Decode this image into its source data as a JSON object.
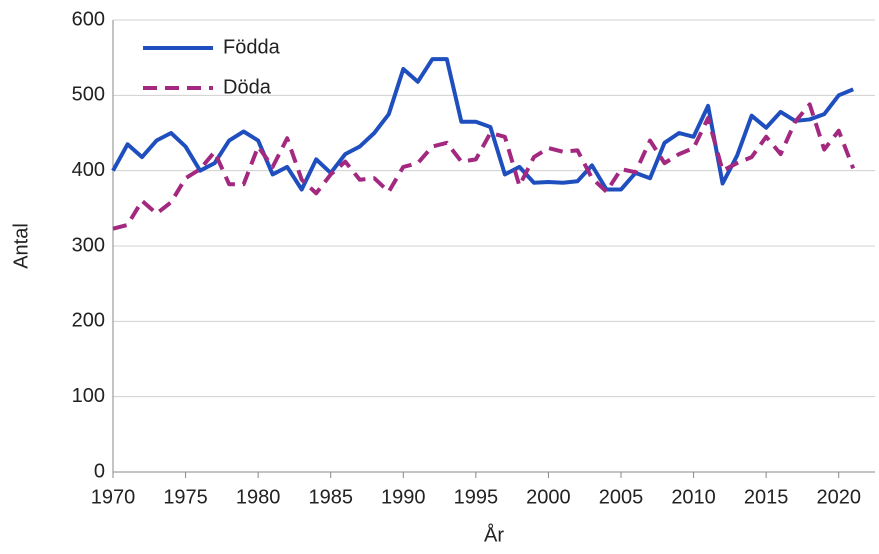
{
  "chart_data": {
    "type": "line",
    "x": [
      1970,
      1971,
      1972,
      1973,
      1974,
      1975,
      1976,
      1977,
      1978,
      1979,
      1980,
      1981,
      1982,
      1983,
      1984,
      1985,
      1986,
      1987,
      1988,
      1989,
      1990,
      1991,
      1992,
      1993,
      1994,
      1995,
      1996,
      1997,
      1998,
      1999,
      2000,
      2001,
      2002,
      2003,
      2004,
      2005,
      2006,
      2007,
      2008,
      2009,
      2010,
      2011,
      2012,
      2013,
      2014,
      2015,
      2016,
      2017,
      2018,
      2019,
      2020,
      2021
    ],
    "series": [
      {
        "name": "Födda",
        "color": "#1f4fbf",
        "dash": false,
        "values": [
          400,
          435,
          418,
          440,
          450,
          432,
          400,
          410,
          440,
          452,
          440,
          395,
          405,
          375,
          415,
          397,
          422,
          432,
          450,
          475,
          535,
          518,
          548,
          548,
          465,
          465,
          458,
          395,
          405,
          384,
          385,
          384,
          386,
          407,
          375,
          375,
          397,
          390,
          437,
          450,
          445,
          486,
          383,
          420,
          473,
          457,
          478,
          466,
          468,
          475,
          500,
          508
        ]
      },
      {
        "name": "Döda",
        "color": "#a3287f",
        "dash": true,
        "values": [
          323,
          328,
          360,
          343,
          358,
          390,
          402,
          425,
          382,
          382,
          432,
          405,
          443,
          388,
          370,
          395,
          412,
          388,
          390,
          372,
          405,
          410,
          432,
          437,
          412,
          415,
          450,
          445,
          380,
          418,
          430,
          425,
          427,
          390,
          372,
          402,
          398,
          440,
          410,
          422,
          430,
          470,
          400,
          410,
          418,
          445,
          422,
          465,
          488,
          428,
          453,
          403
        ]
      }
    ],
    "xlabel": "År",
    "ylabel": "Antal",
    "xlim": [
      1970,
      2022.5
    ],
    "xticks": [
      1970,
      1975,
      1980,
      1985,
      1990,
      1995,
      2000,
      2005,
      2010,
      2015,
      2020
    ],
    "ylim": [
      0,
      600
    ],
    "yticks": [
      0,
      100,
      200,
      300,
      400,
      500,
      600
    ],
    "grid": true,
    "legend": "upper-left"
  }
}
